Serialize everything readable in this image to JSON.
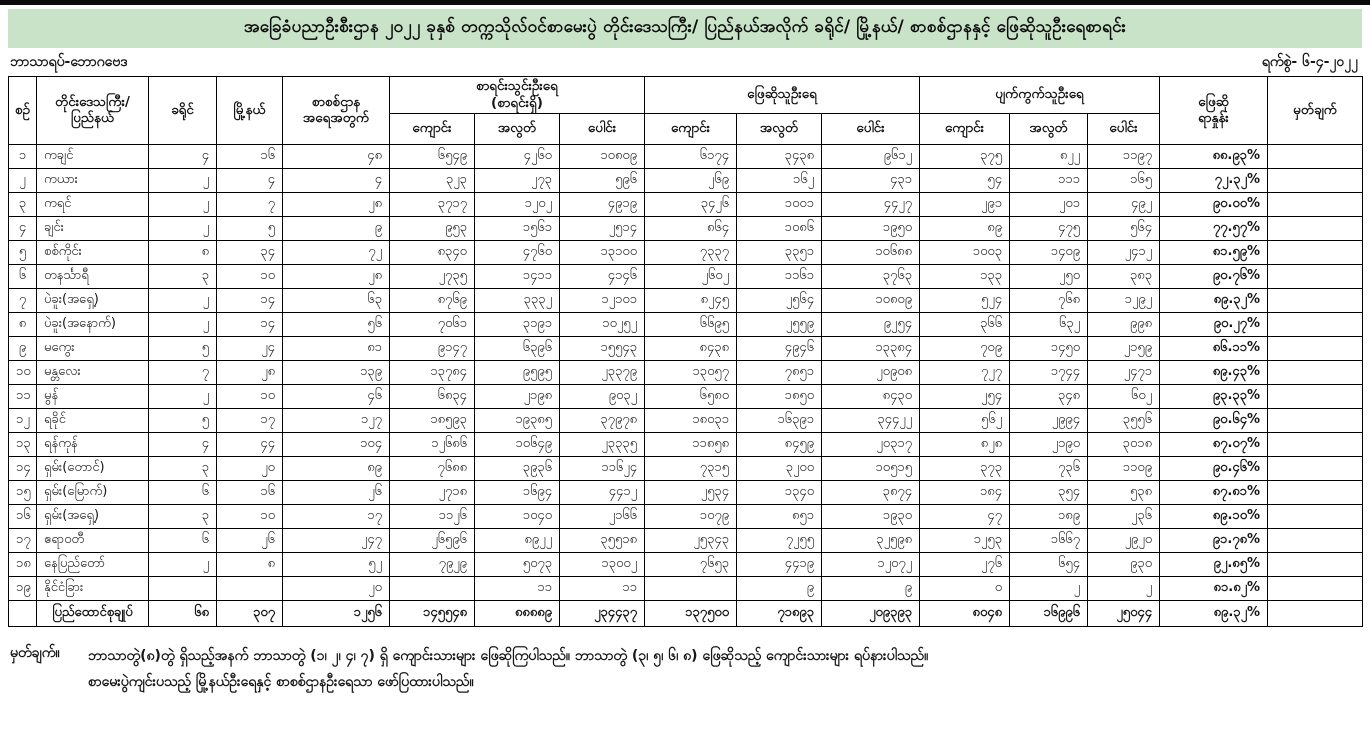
{
  "title": "အခြေခံပညာဦးစီးဌာန ၂၀၂၂ ခုနှစ် တက္ကသိုလ်ဝင်စာမေးပွဲ တိုင်းဒေသကြီး/ ပြည်နယ်အလိုက် ခရိုင်/ မြို့နယ်/ စာစစ်ဌာနနှင့် ဖြေဆိုသူဦးရေစာရင်း",
  "subject_label": "ဘာသာရပ်-ဘောဂဗေဒ",
  "date_label": "ရက်စွဲ- ၆-၄-၂၀၂၂",
  "table": {
    "headers": {
      "serial": "စဉ်",
      "region": "တိုင်းဒေသကြီး/\nပြည်နယ်",
      "district": "ခရိုင်",
      "township": "မြို့နယ်",
      "centers": "စာစစ်ဌာန\nအရေအတွက်",
      "registered": "စာရင်းသွင်းဦးရေ\n(စာရင်းရှိ)",
      "examinees": "ဖြေဆိုသူဦးရေ",
      "absent": "ပျက်ကွက်သူဦးရေ",
      "sub_school": "ကျောင်း",
      "sub_private": "အလွတ်",
      "sub_total": "ပေါင်း",
      "percentage": "ဖြေဆို\nရာနှုန်း",
      "remark": "မှတ်ချက်"
    },
    "rows": [
      [
        "၁",
        "ကချင်",
        "၄",
        "၁၆",
        "၄၈",
        "၆၅၄၉",
        "၄၂၆၀",
        "၁၀၈၀၉",
        "၆၁၇၄",
        "၃၄၃၈",
        "၉၆၁၂",
        "၃၇၅",
        "၈၂၂",
        "၁၁၉၇",
        "၈၈.၉၃%",
        ""
      ],
      [
        "၂",
        "ကယား",
        "၂",
        "၄",
        "၄",
        "၃၂၃",
        "၂၇၃",
        "၅၉၆",
        "၂၆၉",
        "၁၆၂",
        "၄၃၁",
        "၅၄",
        "၁၁၁",
        "၁၆၅",
        "၇၂.၃၂%",
        ""
      ],
      [
        "၃",
        "ကရင်",
        "၂",
        "၇",
        "၂၈",
        "၃၇၁၇",
        "၁၂၀၂",
        "၄၉၁၉",
        "၃၄၂၆",
        "၁၀၀၁",
        "၄၄၂၇",
        "၂၉၁",
        "၂၀၁",
        "၄၉၂",
        "၉၀.၀၀%",
        ""
      ],
      [
        "၄",
        "ချင်း",
        "၂",
        "၅",
        "၉",
        "၉၅၃",
        "၁၅၆၁",
        "၂၅၁၄",
        "၈၆၄",
        "၁၀၈၆",
        "၁၉၅၀",
        "၈၉",
        "၄၇၅",
        "၅၆၄",
        "၇၇.၅၇%",
        ""
      ],
      [
        "၅",
        "စစ်ကိုင်း",
        "၈",
        "၃၄",
        "၇၂",
        "၈၃၄၀",
        "၄၇၆၀",
        "၁၃၁၀၀",
        "၇၃၃၇",
        "၃၃၅၁",
        "၁၀၆၈၈",
        "၁၀၀၃",
        "၁၄၀၉",
        "၂၄၁၂",
        "၈၁.၅၉%",
        ""
      ],
      [
        "၆",
        "တနင်္သာရီ",
        "၃",
        "၁၀",
        "၂၈",
        "၂၇၃၅",
        "၁၄၁၁",
        "၄၁၄၆",
        "၂၆၀၂",
        "၁၁၆၁",
        "၃၇၆၃",
        "၁၃၃",
        "၂၅၀",
        "၃၈၃",
        "၉၀.၇၆%",
        ""
      ],
      [
        "၇",
        "ပဲခူး(အရှေ့)",
        "၂",
        "၁၄",
        "၆၃",
        "၈၇၆၉",
        "၃၃၃၂",
        "၁၂၁၀၁",
        "၈၂၄၅",
        "၂၅၆၄",
        "၁၀၈၀၉",
        "၅၂၄",
        "၇၆၈",
        "၁၂၉၂",
        "၈၉.၃၂%",
        ""
      ],
      [
        "၈",
        "ပဲခူး(အနောက်)",
        "၂",
        "၁၄",
        "၅၆",
        "၇၀၆၁",
        "၃၁၉၁",
        "၁၀၂၅၂",
        "၆၆၉၅",
        "၂၅၅၉",
        "၉၂၅၄",
        "၃၆၆",
        "၆၃၂",
        "၉၉၈",
        "၉၀.၂၇%",
        ""
      ],
      [
        "၉",
        "မကွေး",
        "၅",
        "၂၄",
        "၈၁",
        "၉၁၄၇",
        "၆၃၉၆",
        "၁၅၅၄၃",
        "၈၄၃၈",
        "၄၉၄၆",
        "၁၃၃၈၄",
        "၇၀၉",
        "၁၄၅၀",
        "၂၁၅၉",
        "၈၆.၁၁%",
        ""
      ],
      [
        "၁၀",
        "မန္တလေး",
        "၇",
        "၂၈",
        "၁၃၉",
        "၁၃၇၈၄",
        "၉၅၉၅",
        "၂၃၃၇၉",
        "၁၃၀၅၇",
        "၇၈၅၁",
        "၂၀၉၀၈",
        "၇၂၇",
        "၁၇၄၄",
        "၂၄၇၁",
        "၈၉.၄၃%",
        ""
      ],
      [
        "၁၁",
        "မွန်",
        "၂",
        "၁၀",
        "၄၆",
        "၆၈၃၄",
        "၂၁၉၈",
        "၉၀၃၂",
        "၆၅၈၀",
        "၁၈၅၀",
        "၈၄၃၀",
        "၂၅၄",
        "၃၄၈",
        "၆၀၂",
        "၉၃.၃၃%",
        ""
      ],
      [
        "၁၂",
        "ရခိုင်",
        "၅",
        "၁၇",
        "၁၂၇",
        "၁၈၅၉၃",
        "၁၉၃၈၅",
        "၃၇၉၇၈",
        "၁၈၀၃၁",
        "၁၆၃၉၁",
        "၃၄၄၂၂",
        "၅၆၂",
        "၂၉၉၄",
        "၃၅၅၆",
        "၉၀.၆၄%",
        ""
      ],
      [
        "၁၃",
        "ရန်ကုန်",
        "၄",
        "၄၄",
        "၁၀၄",
        "၁၂၆၈၆",
        "၁၀၆၄၉",
        "၂၃၃၃၅",
        "၁၁၈၅၈",
        "၈၄၅၉",
        "၂၀၃၁၇",
        "၈၂၈",
        "၂၁၉၀",
        "၃၀၁၈",
        "၈၇.၀၇%",
        ""
      ],
      [
        "၁၄",
        "ရှမ်း(တောင်)",
        "၃",
        "၂၀",
        "၈၉",
        "၇၆၈၈",
        "၃၉၃၆",
        "၁၁၆၂၄",
        "၇၃၁၅",
        "၃၂၀၀",
        "၁၀၅၁၅",
        "၃၇၃",
        "၇၃၆",
        "၁၁၀၉",
        "၉၀.၄၆%",
        ""
      ],
      [
        "၁၅",
        "ရှမ်း(မြောက်)",
        "၆",
        "၁၆",
        "၂၆",
        "၂၇၁၈",
        "၁၆၉၄",
        "၄၄၁၂",
        "၂၅၃၄",
        "၁၃၄၀",
        "၃၈၇၄",
        "၁၈၄",
        "၃၅၄",
        "၅၃၈",
        "၈၇.၈၁%",
        ""
      ],
      [
        "၁၆",
        "ရှမ်း(အရှေ့)",
        "၃",
        "၁၀",
        "၁၇",
        "၁၁၂၆",
        "၁၀၄၀",
        "၂၁၆၆",
        "၁၀၇၉",
        "၈၅၁",
        "၁၉၃၀",
        "၄၇",
        "၁၈၉",
        "၂၃၆",
        "၈၉.၁၀%",
        ""
      ],
      [
        "၁၇",
        "ဧရာဝတီ",
        "၆",
        "၂၆",
        "၂၄၇",
        "၂၆၅၉၆",
        "၈၉၂၂",
        "၃၅၅၁၈",
        "၂၅၃၄၃",
        "၇၂၅၅",
        "၃၂၅၉၈",
        "၁၂၅၃",
        "၁၆၆၇",
        "၂၉၂၀",
        "၉၁.၇၈%",
        ""
      ],
      [
        "၁၈",
        "နေပြည်တော်",
        "၂",
        "၈",
        "၅၂",
        "၇၉၂၉",
        "၅၀၇၃",
        "၁၃၀၀၂",
        "၇၆၅၃",
        "၄၄၁၉",
        "၁၂၀၇၂",
        "၂၇၆",
        "၆၅၄",
        "၉၃၀",
        "၉၂.၈၅%",
        ""
      ],
      [
        "၁၉",
        "နိုင်ငံခြား",
        "",
        "",
        "၂၀",
        "",
        "၁၁",
        "၁၁",
        "",
        "၉",
        "၉",
        "၀",
        "၂",
        "၂",
        "၈၁.၈၂%",
        ""
      ]
    ],
    "total_row": [
      "",
      "ပြည်ထောင်စုချုပ်",
      "၆၈",
      "၃၀၇",
      "၁၂၅၆",
      "၁၄၅၅၄၈",
      "၈၈၈၈၉",
      "၂၃၄၄၃၇",
      "၁၃၇၅၀၀",
      "၇၁၈၉၃",
      "၂၀၉၃၉၃",
      "၈၀၄၈",
      "၁၆၉၉၆",
      "၂၅၀၄၄",
      "၈၉.၃၂%",
      ""
    ]
  },
  "footnote": {
    "label": "မှတ်ချက်။",
    "line1": "ဘာသာတွဲ(၈)တွဲ ရှိသည့်အနက် ဘာသာတွဲ (၁၊ ၂၊ ၄၊ ၇) ရှိ ကျောင်းသားများ ဖြေဆိုကြပါသည်။ ဘာသာတွဲ (၃၊ ၅၊ ၆၊ ၈) ဖြေဆိုသည့် ကျောင်းသားများ ရပ်နားပါသည်။",
    "line2": "စာမေးပွဲကျင်းပသည့် မြို့နယ်ဦးရေနှင့် စာစစ်ဌာနဦးရေသာ ဖော်ပြထားပါသည်။"
  },
  "colors": {
    "title_background": "#c9e3c9",
    "border": "#000000",
    "text": "#141414"
  }
}
